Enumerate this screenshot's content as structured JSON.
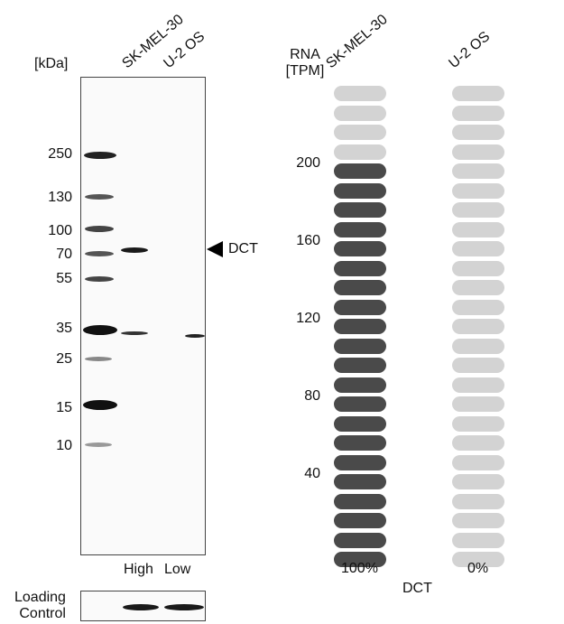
{
  "western_blot": {
    "unit_label": "[kDa]",
    "lanes": [
      "SK-MEL-30",
      "U-2 OS"
    ],
    "markers": [
      "250",
      "130",
      "100",
      "70",
      "55",
      "35",
      "25",
      "15",
      "10"
    ],
    "target_label": "DCT",
    "exposure_labels": [
      "High",
      "Low"
    ],
    "loading_control_label_line1": "Loading",
    "loading_control_label_line2": "Control"
  },
  "rna": {
    "axis_title_line1": "RNA",
    "axis_title_line2": "[TPM]",
    "cell_lines": [
      "SK-MEL-30",
      "U-2 OS"
    ],
    "ticks": [
      "200",
      "160",
      "120",
      "80",
      "40"
    ],
    "percentages": [
      "100%",
      "0%"
    ],
    "gene_label": "DCT",
    "dark_color": "#4a4a4a",
    "light_color": "#d3d3d3",
    "total_segments": 25,
    "filled_segments": [
      21,
      0
    ]
  }
}
